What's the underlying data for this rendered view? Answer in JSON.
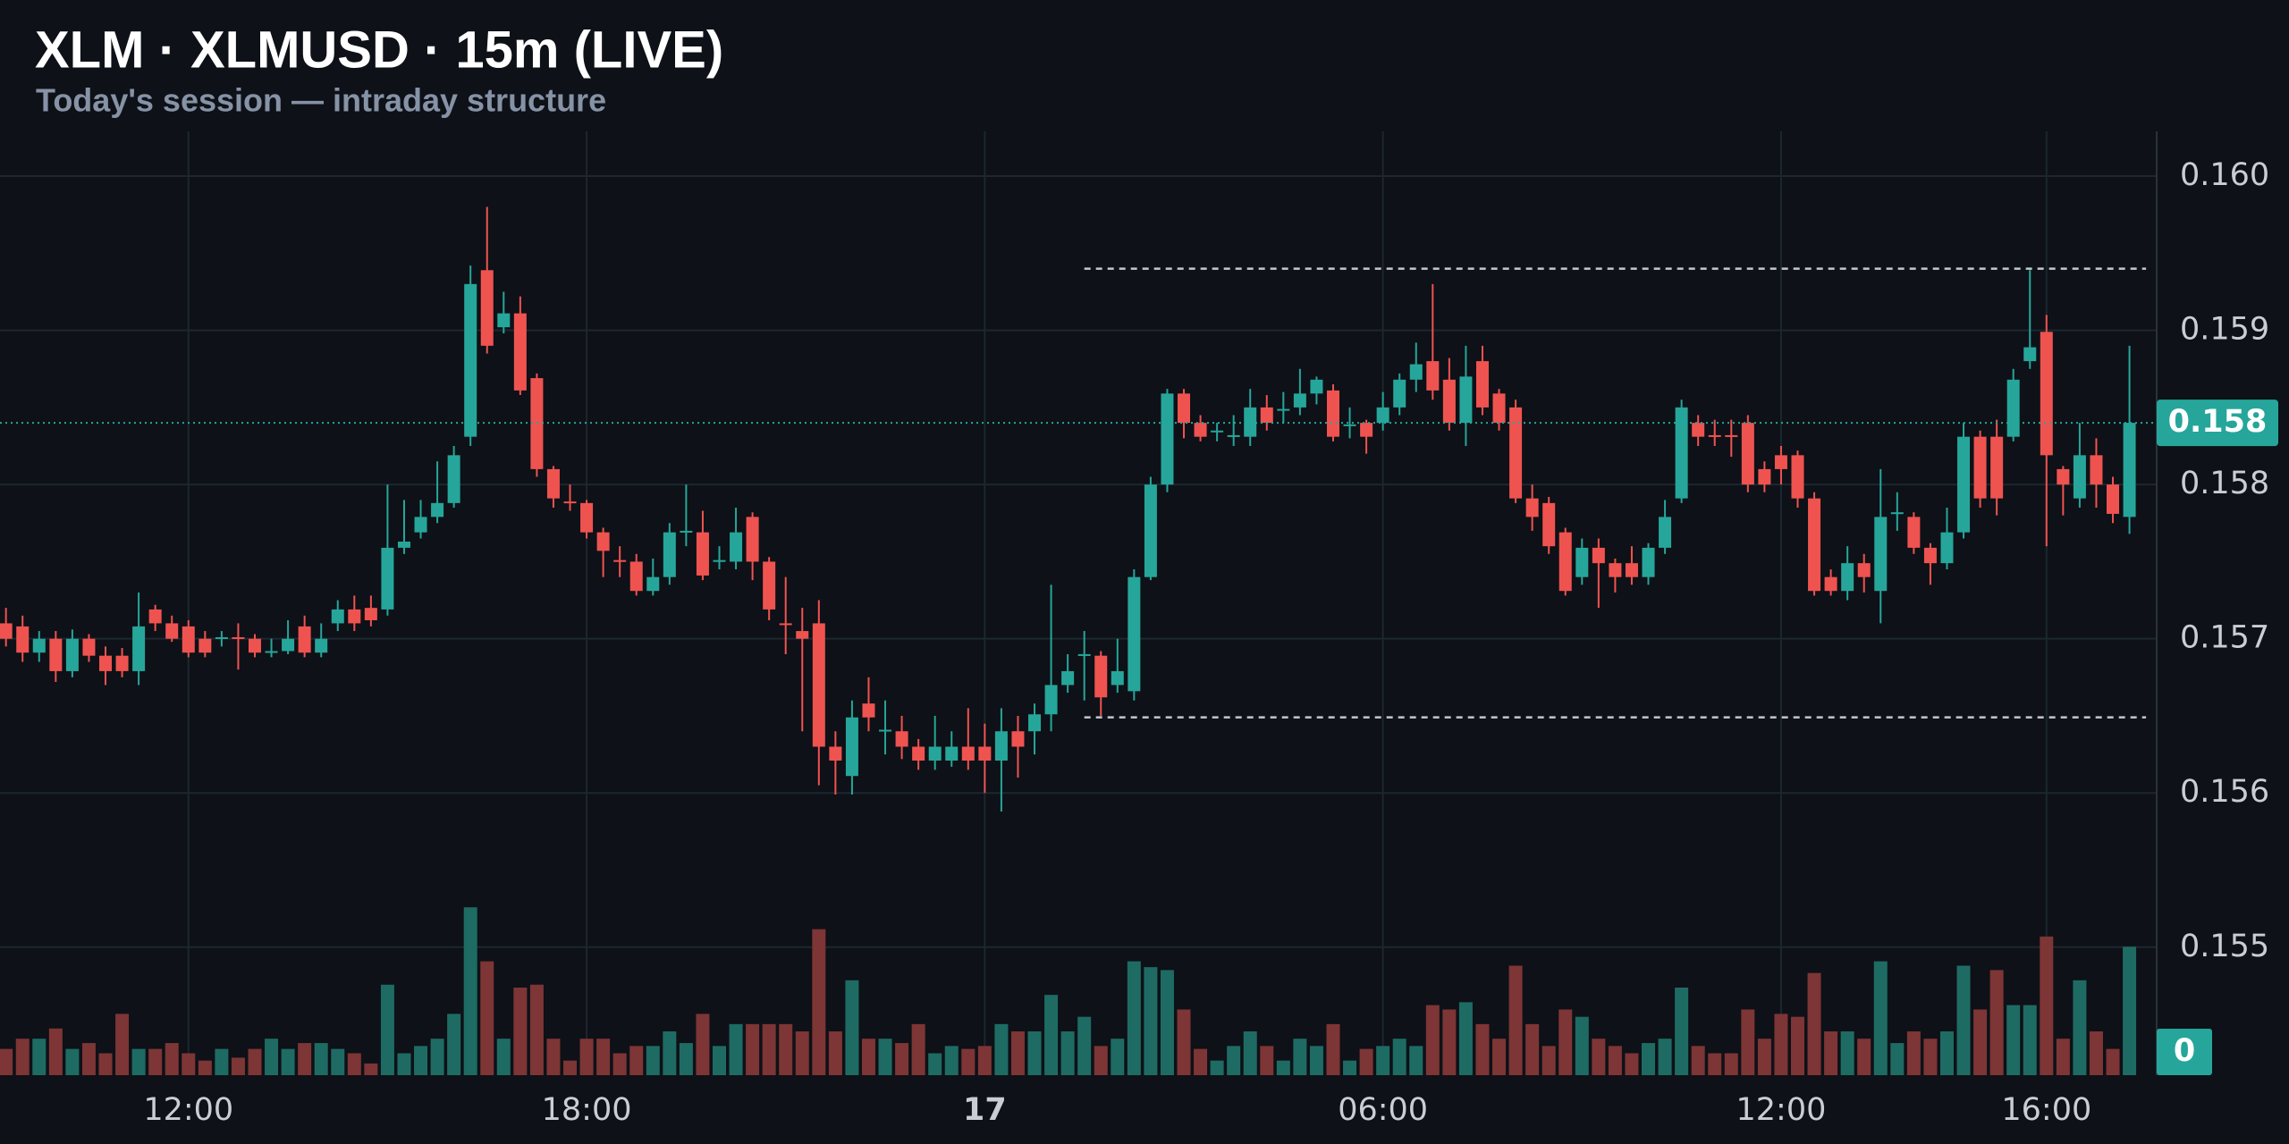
{
  "chart_data": {
    "type": "candlestick",
    "title": "XLM · XLMUSD · 15m (LIVE)",
    "subtitle": "Today's session — intraday structure",
    "x": [
      9.25,
      9.5,
      9.75,
      10,
      10.25,
      10.5,
      10.75,
      11,
      11.25,
      11.5,
      11.75,
      12,
      12.25,
      12.5,
      12.75,
      13,
      13.25,
      13.5,
      13.75,
      14,
      14.25,
      14.5,
      14.75,
      15,
      15.25,
      15.5,
      15.75,
      16,
      16.25,
      16.5,
      16.75,
      17,
      17.25,
      17.5,
      17.75,
      18,
      18.25,
      18.5,
      18.75,
      19,
      19.25,
      19.5,
      19.75,
      20,
      20.25,
      20.5,
      20.75,
      21,
      21.25,
      21.5,
      21.75,
      22,
      22.25,
      22.5,
      22.75,
      23,
      23.25,
      23.5,
      23.75,
      24,
      24.25,
      24.5,
      24.75,
      25,
      25.25,
      25.5,
      25.75,
      26,
      26.25,
      26.5,
      26.75,
      27,
      27.25,
      27.5,
      27.75,
      28,
      28.25,
      28.5,
      28.75,
      29,
      29.25,
      29.5,
      29.75,
      30,
      30.25,
      30.5,
      30.75,
      31,
      31.25,
      31.5,
      31.75,
      32,
      32.25,
      32.5,
      32.75,
      33,
      33.25,
      33.5,
      33.75,
      34,
      34.25,
      34.5,
      34.75,
      35,
      35.25,
      35.5,
      35.75,
      36,
      36.25,
      36.5,
      36.75,
      37,
      37.25,
      37.5,
      37.75,
      38,
      38.25,
      38.5,
      38.75,
      39,
      39.25,
      39.5,
      39.75,
      40,
      40.25,
      40.5,
      40.75,
      41,
      41.25
    ],
    "open": [
      0.1571,
      0.15708,
      0.15691,
      0.157,
      0.15679,
      0.157,
      0.15689,
      0.15689,
      0.15679,
      0.15719,
      0.1571,
      0.15708,
      0.157,
      0.157,
      0.15701,
      0.157,
      0.15691,
      0.15692,
      0.15708,
      0.15691,
      0.1571,
      0.15719,
      0.1572,
      0.15719,
      0.15759,
      0.15769,
      0.15779,
      0.15788,
      0.15831,
      0.15939,
      0.15902,
      0.15911,
      0.15869,
      0.1581,
      0.15789,
      0.15788,
      0.15769,
      0.15751,
      0.1575,
      0.15731,
      0.1574,
      0.15769,
      0.15769,
      0.1575,
      0.1575,
      0.15779,
      0.1575,
      0.1571,
      0.15705,
      0.1571,
      0.1563,
      0.15611,
      0.15658,
      0.1564,
      0.1564,
      0.1563,
      0.15621,
      0.15621,
      0.1563,
      0.1563,
      0.15621,
      0.1564,
      0.1564,
      0.15651,
      0.1567,
      0.15689,
      0.15689,
      0.1567,
      0.15666,
      0.1574,
      0.158,
      0.15859,
      0.1584,
      0.15834,
      0.15831,
      0.15831,
      0.1585,
      0.15848,
      0.1585,
      0.15859,
      0.15861,
      0.15838,
      0.1584,
      0.1584,
      0.1585,
      0.15868,
      0.1588,
      0.15868,
      0.1584,
      0.1588,
      0.15859,
      0.1585,
      0.15791,
      0.15788,
      0.15769,
      0.1574,
      0.15759,
      0.15749,
      0.15749,
      0.1574,
      0.15759,
      0.15791,
      0.1584,
      0.15832,
      0.15832,
      0.1584,
      0.1581,
      0.15819,
      0.15819,
      0.15791,
      0.1574,
      0.15731,
      0.15749,
      0.15731,
      0.15781,
      0.15779,
      0.15759,
      0.15749,
      0.15769,
      0.15831,
      0.15831,
      0.15831,
      0.1588,
      0.15899,
      0.1581,
      0.15791,
      0.15819,
      0.158,
      0.15779
    ],
    "high": [
      0.1572,
      0.15715,
      0.15705,
      0.15705,
      0.15706,
      0.15703,
      0.15695,
      0.15694,
      0.1573,
      0.15722,
      0.15715,
      0.15712,
      0.15705,
      0.15705,
      0.1571,
      0.15703,
      0.157,
      0.15712,
      0.15715,
      0.1571,
      0.15725,
      0.15728,
      0.15728,
      0.158,
      0.1579,
      0.1579,
      0.15815,
      0.15825,
      0.15942,
      0.1598,
      0.15925,
      0.15922,
      0.15872,
      0.15812,
      0.158,
      0.1579,
      0.15772,
      0.1576,
      0.15755,
      0.15752,
      0.15775,
      0.158,
      0.15783,
      0.1576,
      0.15785,
      0.15782,
      0.15753,
      0.1574,
      0.1572,
      0.15725,
      0.1564,
      0.1566,
      0.15675,
      0.1566,
      0.1565,
      0.15635,
      0.1565,
      0.1564,
      0.15655,
      0.15645,
      0.15655,
      0.1565,
      0.15658,
      0.15735,
      0.1569,
      0.15705,
      0.15692,
      0.157,
      0.15745,
      0.15805,
      0.15862,
      0.15862,
      0.15845,
      0.1584,
      0.15845,
      0.15862,
      0.15858,
      0.1586,
      0.15875,
      0.1587,
      0.15865,
      0.1585,
      0.15842,
      0.1586,
      0.15872,
      0.15892,
      0.1593,
      0.15882,
      0.1589,
      0.1589,
      0.15862,
      0.15855,
      0.158,
      0.15792,
      0.15772,
      0.15765,
      0.15765,
      0.15752,
      0.1576,
      0.15762,
      0.1579,
      0.15855,
      0.15845,
      0.15842,
      0.15842,
      0.15845,
      0.15815,
      0.15825,
      0.15822,
      0.15795,
      0.15745,
      0.1576,
      0.15755,
      0.1581,
      0.15795,
      0.15782,
      0.15762,
      0.15785,
      0.1584,
      0.15835,
      0.15842,
      0.15875,
      0.15939,
      0.1591,
      0.15812,
      0.1584,
      0.1583,
      0.15805,
      0.1589
    ],
    "low": [
      0.15695,
      0.15685,
      0.15685,
      0.15672,
      0.15675,
      0.15685,
      0.1567,
      0.15675,
      0.1567,
      0.15705,
      0.15698,
      0.15688,
      0.15688,
      0.15695,
      0.1568,
      0.15688,
      0.15688,
      0.1569,
      0.15688,
      0.15688,
      0.15705,
      0.15705,
      0.15708,
      0.15715,
      0.15755,
      0.15765,
      0.15775,
      0.15785,
      0.15825,
      0.15885,
      0.15898,
      0.15858,
      0.15805,
      0.15785,
      0.15783,
      0.15765,
      0.1574,
      0.1574,
      0.15728,
      0.15728,
      0.15735,
      0.1576,
      0.15738,
      0.15745,
      0.15745,
      0.15738,
      0.15712,
      0.1569,
      0.1564,
      0.15605,
      0.15599,
      0.15599,
      0.1564,
      0.15625,
      0.15622,
      0.15615,
      0.15615,
      0.15617,
      0.15615,
      0.156,
      0.15588,
      0.1561,
      0.15625,
      0.1564,
      0.15665,
      0.1566,
      0.1565,
      0.15665,
      0.1566,
      0.15738,
      0.15795,
      0.1583,
      0.15828,
      0.15828,
      0.15825,
      0.15825,
      0.15835,
      0.1584,
      0.15845,
      0.15852,
      0.15828,
      0.1583,
      0.1582,
      0.15835,
      0.15845,
      0.1586,
      0.15855,
      0.15835,
      0.15825,
      0.15845,
      0.15835,
      0.15788,
      0.1577,
      0.15755,
      0.15728,
      0.15735,
      0.1572,
      0.1573,
      0.15735,
      0.15735,
      0.15755,
      0.15788,
      0.15825,
      0.15825,
      0.15818,
      0.15795,
      0.15795,
      0.158,
      0.15785,
      0.15728,
      0.15728,
      0.15725,
      0.1573,
      0.1571,
      0.1577,
      0.15755,
      0.15735,
      0.15745,
      0.15765,
      0.15785,
      0.1578,
      0.15828,
      0.15875,
      0.1576,
      0.1578,
      0.15785,
      0.15785,
      0.15775,
      0.15768
    ],
    "close": [
      0.157,
      0.15691,
      0.157,
      0.15679,
      0.157,
      0.15689,
      0.15679,
      0.15679,
      0.15708,
      0.1571,
      0.157,
      0.15691,
      0.15691,
      0.15701,
      0.157,
      0.15691,
      0.15692,
      0.157,
      0.15691,
      0.157,
      0.15719,
      0.1571,
      0.15712,
      0.15759,
      0.15763,
      0.15779,
      0.15788,
      0.15819,
      0.1593,
      0.1589,
      0.15911,
      0.15861,
      0.1581,
      0.15791,
      0.15788,
      0.15769,
      0.15757,
      0.1575,
      0.15731,
      0.1574,
      0.15769,
      0.1577,
      0.15741,
      0.15751,
      0.15769,
      0.1575,
      0.15719,
      0.15709,
      0.157,
      0.1563,
      0.15621,
      0.15649,
      0.15649,
      0.15641,
      0.1563,
      0.15621,
      0.1563,
      0.1563,
      0.15621,
      0.15621,
      0.1564,
      0.1563,
      0.15651,
      0.1567,
      0.15679,
      0.1569,
      0.15662,
      0.15679,
      0.1574,
      0.158,
      0.15859,
      0.1584,
      0.15831,
      0.15835,
      0.15832,
      0.1585,
      0.1584,
      0.15849,
      0.15859,
      0.15868,
      0.15831,
      0.15839,
      0.15831,
      0.1585,
      0.15868,
      0.15878,
      0.15861,
      0.1584,
      0.1587,
      0.1585,
      0.1584,
      0.15791,
      0.15779,
      0.1576,
      0.15731,
      0.15759,
      0.15749,
      0.1574,
      0.1574,
      0.15759,
      0.15779,
      0.1585,
      0.15831,
      0.15831,
      0.15831,
      0.158,
      0.158,
      0.1581,
      0.15791,
      0.15731,
      0.15731,
      0.15749,
      0.1574,
      0.15779,
      0.15782,
      0.15759,
      0.15749,
      0.15769,
      0.15831,
      0.15791,
      0.15791,
      0.15868,
      0.15889,
      0.15819,
      0.158,
      0.15819,
      0.158,
      0.15781,
      0.1584
    ],
    "volume": [
      18,
      25,
      25,
      32,
      18,
      22,
      15,
      42,
      18,
      18,
      22,
      15,
      10,
      18,
      12,
      18,
      25,
      18,
      22,
      22,
      18,
      15,
      8,
      62,
      15,
      20,
      25,
      42,
      115,
      78,
      25,
      60,
      62,
      25,
      10,
      25,
      25,
      15,
      20,
      20,
      30,
      22,
      42,
      20,
      35,
      35,
      35,
      35,
      30,
      100,
      30,
      65,
      25,
      25,
      22,
      35,
      15,
      20,
      18,
      20,
      35,
      30,
      30,
      55,
      30,
      40,
      20,
      25,
      78,
      74,
      72,
      45,
      18,
      10,
      20,
      30,
      20,
      10,
      25,
      20,
      35,
      10,
      18,
      20,
      25,
      20,
      48,
      45,
      50,
      35,
      25,
      75,
      35,
      20,
      45,
      40,
      25,
      20,
      15,
      22,
      25,
      60,
      20,
      15,
      15,
      45,
      25,
      42,
      40,
      70,
      30,
      30,
      25,
      78,
      22,
      30,
      25,
      30,
      75,
      45,
      72,
      48,
      48,
      95,
      25,
      65,
      30,
      18,
      88
    ],
    "up_color": "#26a69a",
    "down_color": "#ef5350",
    "volume_up_color": "#1e6b64",
    "volume_down_color": "#7d3535",
    "xlim": [
      9.16,
      41.66
    ],
    "xticks": [
      {
        "value": 12,
        "label": "12:00"
      },
      {
        "value": 18,
        "label": "18:00"
      },
      {
        "value": 24,
        "label": "17"
      },
      {
        "value": 30,
        "label": "06:00"
      },
      {
        "value": 36,
        "label": "12:00"
      },
      {
        "value": 40,
        "label": "16:00"
      }
    ],
    "ylim": [
      0.15417,
      0.16029
    ],
    "yticks": [
      0.155,
      0.156,
      0.157,
      0.158,
      0.159,
      {
        "value": 0.16,
        "label": "0.160"
      }
    ],
    "vlim": [
      0,
      150
    ],
    "vticks": [
      0
    ],
    "last_price": {
      "value": 0.1584,
      "label": "0.158"
    },
    "levels": [
      {
        "value": 0.1594,
        "start": 25.5,
        "end": 41.5
      },
      {
        "value": 0.15649,
        "start": 25.5,
        "end": 41.5
      }
    ],
    "grid": true
  }
}
